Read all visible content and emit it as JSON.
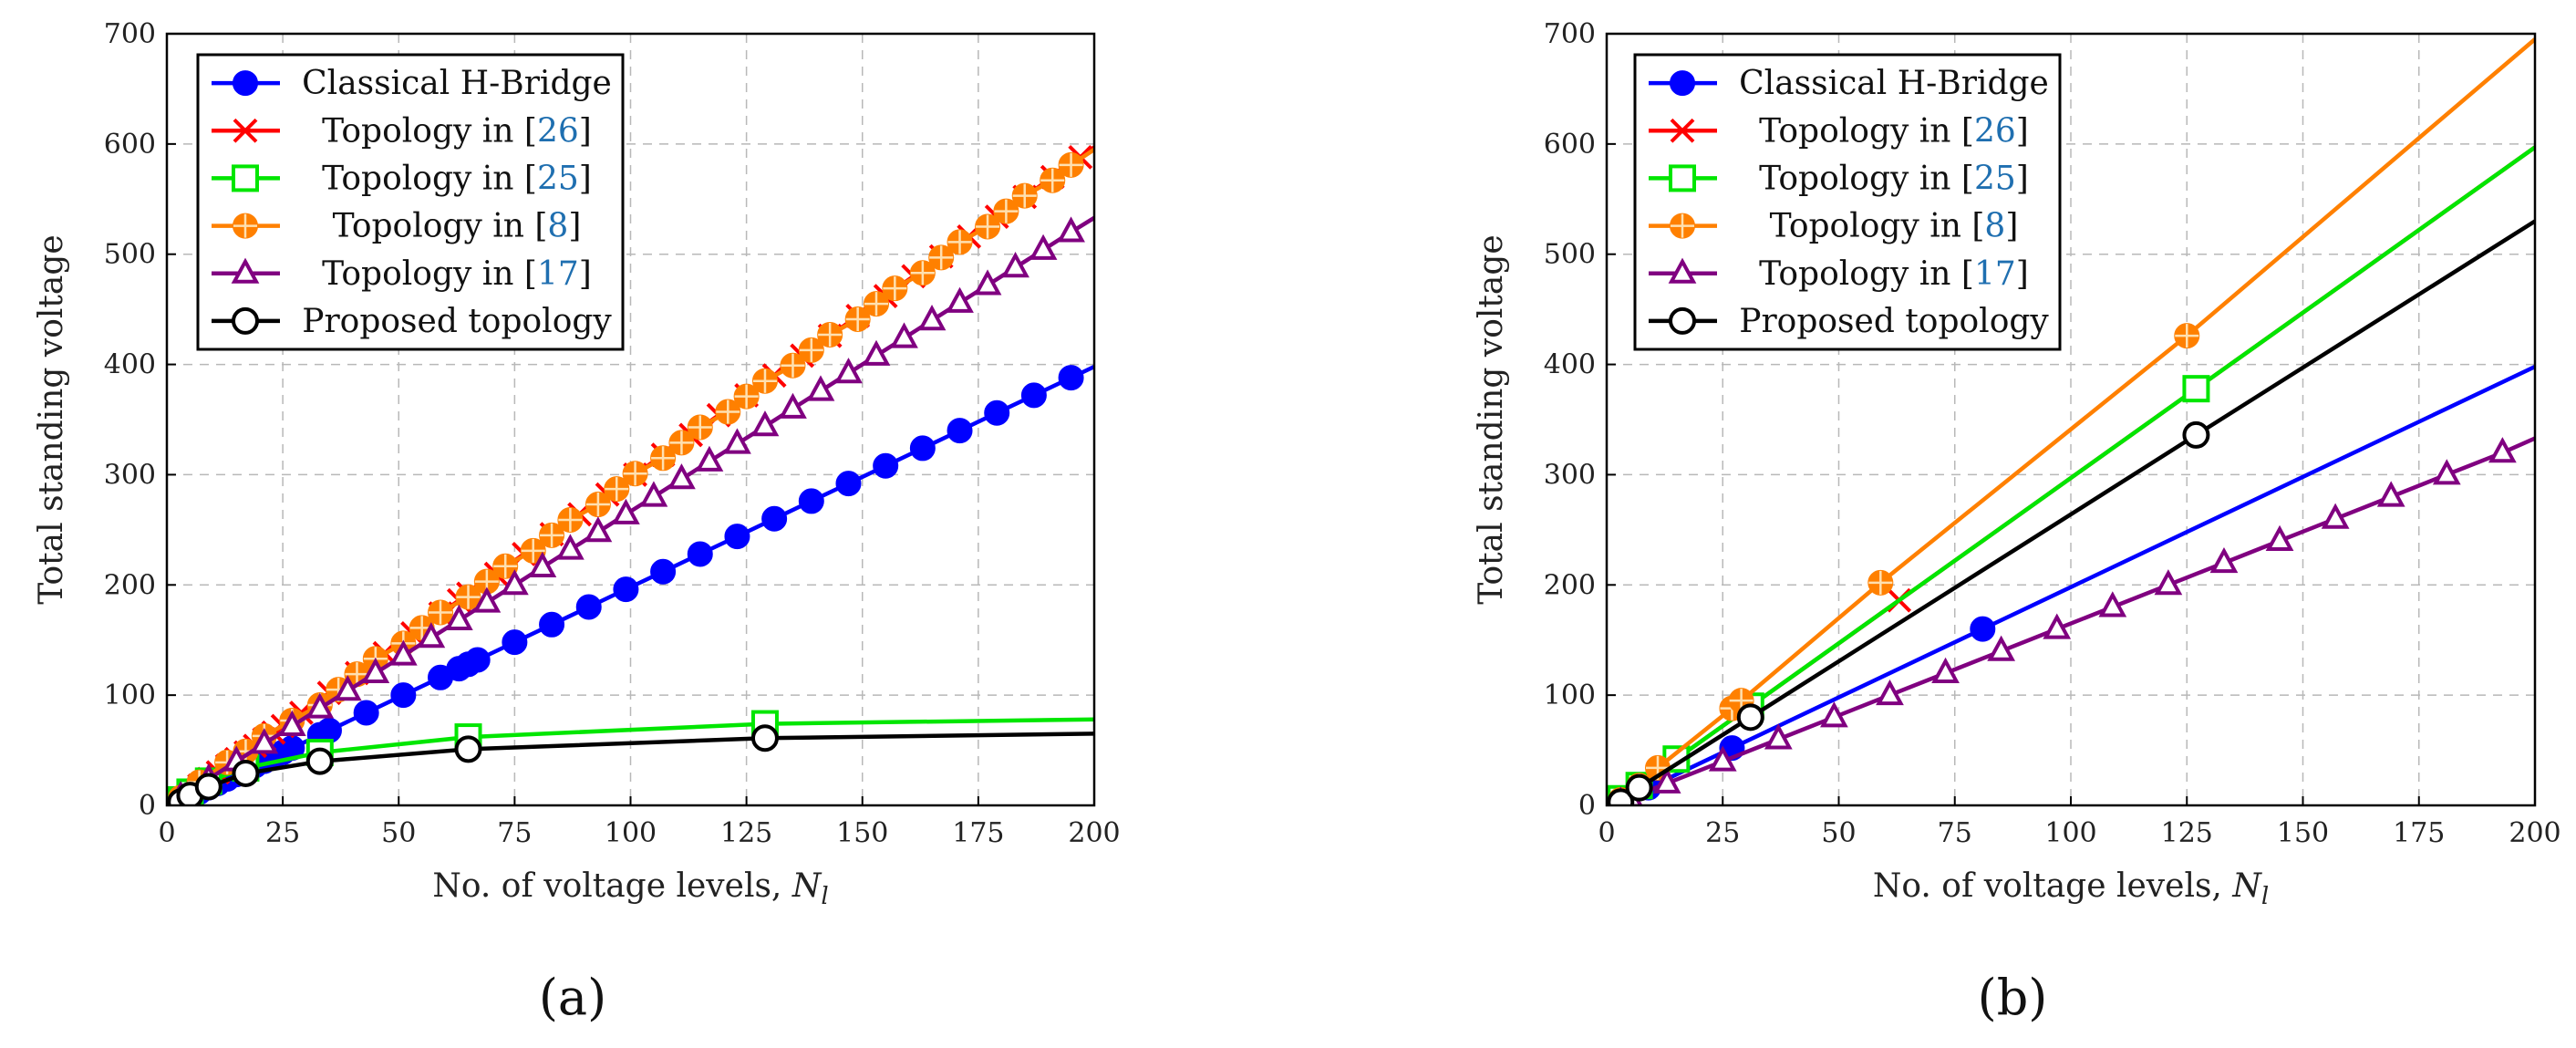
{
  "chart_data": [
    {
      "type": "line",
      "panel_label": "(a)",
      "xlabel": "No. of voltage levels, ",
      "xlabel_var": "N",
      "xlabel_sub": "l",
      "ylabel": "Total standing voltage",
      "xlim": [
        0,
        200
      ],
      "ylim": [
        0,
        700
      ],
      "xticks": [
        0,
        25,
        50,
        75,
        100,
        125,
        150,
        175,
        200
      ],
      "yticks": [
        0,
        100,
        200,
        300,
        400,
        500,
        600,
        700
      ],
      "grid": true,
      "legend_position": "top-left",
      "series": [
        {
          "name": "Classical H-Bridge",
          "name_pre": "Classical H-Bridge",
          "cite": "",
          "name_post": "",
          "color": "#0000ff",
          "marker": "circle",
          "x": [
            3,
            7,
            9,
            11,
            13,
            15,
            17,
            19,
            21,
            23,
            25,
            27,
            33,
            35,
            43,
            51,
            59,
            63,
            65,
            67,
            75,
            83,
            91,
            99,
            107,
            115,
            123,
            131,
            139,
            147,
            155,
            163,
            171,
            179,
            187,
            195,
            200
          ],
          "y": [
            4,
            12,
            16,
            20,
            24,
            28,
            32,
            36,
            40,
            44,
            48,
            52,
            64,
            68,
            84,
            100,
            116,
            124,
            128,
            132,
            148,
            164,
            180,
            196,
            212,
            228,
            244,
            260,
            276,
            292,
            308,
            324,
            340,
            356,
            372,
            388,
            398
          ]
        },
        {
          "name": "Topology in [26]",
          "name_pre": "Topology in [",
          "cite": "26",
          "name_post": "]",
          "color": "#ff0000",
          "marker": "x",
          "x": [
            3,
            7,
            9,
            11,
            13,
            15,
            17,
            19,
            21,
            23,
            25,
            29,
            35,
            41,
            47,
            53,
            59,
            63,
            65,
            71,
            77,
            83,
            89,
            95,
            101,
            107,
            113,
            119,
            125,
            131,
            137,
            143,
            149,
            155,
            161,
            167,
            173,
            179,
            185,
            191,
            197,
            200
          ],
          "y": [
            6,
            18,
            24,
            30,
            36,
            42,
            48,
            54,
            60,
            66,
            72,
            84,
            102,
            120,
            138,
            156,
            174,
            186,
            192,
            210,
            228,
            246,
            264,
            282,
            300,
            318,
            336,
            354,
            372,
            390,
            408,
            426,
            444,
            462,
            480,
            498,
            516,
            534,
            552,
            570,
            588,
            597
          ]
        },
        {
          "name": "Topology in [25]",
          "name_pre": "Topology in [",
          "cite": "25",
          "name_post": "]",
          "color": "#00e600",
          "marker": "square",
          "x": [
            3,
            5,
            9,
            17,
            33,
            65,
            129,
            200
          ],
          "y": [
            5,
            12,
            22,
            34,
            48,
            62,
            74,
            78
          ]
        },
        {
          "name": "Topology in [8]",
          "name_pre": "Topology in [",
          "cite": "8",
          "name_post": "]",
          "color": "#ff8000",
          "marker": "otimes",
          "x": [
            3,
            7,
            13,
            17,
            21,
            27,
            33,
            37,
            41,
            45,
            51,
            55,
            59,
            65,
            69,
            73,
            79,
            83,
            87,
            93,
            97,
            101,
            107,
            111,
            115,
            121,
            125,
            129,
            135,
            139,
            143,
            149,
            153,
            157,
            163,
            167,
            171,
            177,
            181,
            185,
            191,
            195,
            200
          ],
          "y": [
            7,
            21,
            39,
            49,
            63,
            77,
            91,
            105,
            119,
            133,
            147,
            161,
            175,
            189,
            203,
            217,
            231,
            245,
            259,
            273,
            287,
            301,
            315,
            329,
            343,
            357,
            371,
            385,
            399,
            413,
            427,
            441,
            455,
            469,
            483,
            497,
            511,
            525,
            539,
            553,
            567,
            581,
            595
          ]
        },
        {
          "name": "Topology in [17]",
          "name_pre": "Topology in [",
          "cite": "17",
          "name_post": "]",
          "color": "#800080",
          "marker": "triangle",
          "x": [
            3,
            9,
            15,
            21,
            27,
            33,
            39,
            45,
            51,
            57,
            63,
            69,
            75,
            81,
            87,
            93,
            99,
            105,
            111,
            117,
            123,
            129,
            135,
            141,
            147,
            153,
            159,
            165,
            171,
            177,
            183,
            189,
            195,
            200
          ],
          "y": [
            8,
            24,
            40,
            56,
            72,
            88,
            104,
            120,
            136,
            152,
            168,
            184,
            200,
            216,
            232,
            248,
            264,
            280,
            296,
            312,
            328,
            344,
            360,
            376,
            392,
            408,
            424,
            440,
            456,
            472,
            488,
            504,
            520,
            533
          ]
        },
        {
          "name": "Proposed topology",
          "name_pre": "Proposed topology",
          "cite": "",
          "name_post": "",
          "color": "#000000",
          "marker": "ocircle",
          "x": [
            3,
            5,
            9,
            17,
            33,
            65,
            129,
            200
          ],
          "y": [
            3,
            9,
            17,
            29,
            40,
            51,
            61,
            65
          ]
        }
      ]
    },
    {
      "type": "line",
      "panel_label": "(b)",
      "xlabel": "No. of voltage levels, ",
      "xlabel_var": "N",
      "xlabel_sub": "l",
      "ylabel": "Total standing voltage",
      "xlim": [
        0,
        200
      ],
      "ylim": [
        0,
        700
      ],
      "xticks": [
        0,
        25,
        50,
        75,
        100,
        125,
        150,
        175,
        200
      ],
      "yticks": [
        0,
        100,
        200,
        300,
        400,
        500,
        600,
        700
      ],
      "grid": true,
      "legend_position": "top-left",
      "series": [
        {
          "name": "Classical H-Bridge",
          "name_pre": "Classical H-Bridge",
          "cite": "",
          "name_post": "",
          "color": "#0000ff",
          "marker": "circle",
          "x": [
            3,
            9,
            27,
            81,
            200
          ],
          "y": [
            4,
            16,
            52,
            160,
            398
          ]
        },
        {
          "name": "Topology in [26]",
          "name_pre": "Topology in [",
          "cite": "26",
          "name_post": "]",
          "color": "#ff0000",
          "marker": "x",
          "x": [
            3,
            7,
            15,
            31,
            63,
            127,
            200
          ],
          "y": [
            6,
            18,
            42,
            90,
            186,
            378,
            597
          ]
        },
        {
          "name": "Topology in [25]",
          "name_pre": "Topology in [",
          "cite": "25",
          "name_post": "]",
          "color": "#00e600",
          "marker": "square",
          "x": [
            3,
            7,
            15,
            31,
            127,
            200
          ],
          "y": [
            6,
            18,
            42,
            90,
            378,
            597
          ]
        },
        {
          "name": "Topology in [8]",
          "name_pre": "Topology in [",
          "cite": "8",
          "name_post": "]",
          "color": "#ff8000",
          "marker": "otimes",
          "x": [
            3,
            7,
            11,
            27,
            29,
            59,
            125,
            200
          ],
          "y": [
            5,
            18,
            34,
            88,
            95,
            202,
            426,
            695
          ]
        },
        {
          "name": "Topology in [17]",
          "name_pre": "Topology in [",
          "cite": "17",
          "name_post": "]",
          "color": "#800080",
          "marker": "triangle",
          "x": [
            3,
            5,
            13,
            25,
            37,
            49,
            61,
            73,
            85,
            97,
            109,
            121,
            133,
            145,
            157,
            169,
            181,
            193,
            200
          ],
          "y": [
            3,
            7,
            20,
            40,
            60,
            80,
            100,
            120,
            140,
            160,
            180,
            200,
            220,
            240,
            260,
            280,
            300,
            320,
            333
          ]
        },
        {
          "name": "Proposed topology",
          "name_pre": "Proposed topology",
          "cite": "",
          "name_post": "",
          "color": "#000000",
          "marker": "ocircle",
          "x": [
            3,
            7,
            31,
            127,
            200
          ],
          "y": [
            3,
            16,
            80,
            336,
            530
          ]
        }
      ]
    }
  ]
}
